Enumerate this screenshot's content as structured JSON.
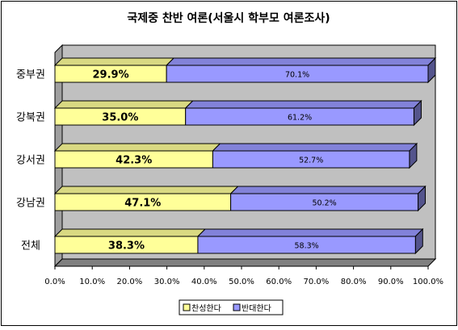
{
  "chart_data": {
    "type": "bar",
    "orientation": "horizontal",
    "stacked": true,
    "percent_stacked": true,
    "title": "국제중 찬반 여론(서울시 학부모 여론조사)",
    "categories": [
      "중부권",
      "강북권",
      "강서권",
      "강남권",
      "전체"
    ],
    "series": [
      {
        "name": "찬성한다",
        "color": "#ffff99",
        "values": [
          29.9,
          35.0,
          42.3,
          47.1,
          38.3
        ],
        "labels": [
          "29.9%",
          "35.0%",
          "42.3%",
          "47.1%",
          "38.3%"
        ]
      },
      {
        "name": "반대한다",
        "color": "#9999ff",
        "values": [
          70.1,
          61.2,
          52.7,
          50.2,
          58.3
        ],
        "labels": [
          "70.1%",
          "61.2%",
          "52.7%",
          "50.2%",
          "58.3%"
        ]
      }
    ],
    "x_ticks": [
      "0.0%",
      "10.0%",
      "20.0%",
      "30.0%",
      "40.0%",
      "50.0%",
      "60.0%",
      "70.0%",
      "80.0%",
      "90.0%",
      "100.0%"
    ],
    "xlim": [
      0,
      100
    ],
    "xlabel": "",
    "ylabel": "",
    "grid": false,
    "three_d": true,
    "plot_background": "#c0c0c0",
    "legend_position": "bottom"
  }
}
